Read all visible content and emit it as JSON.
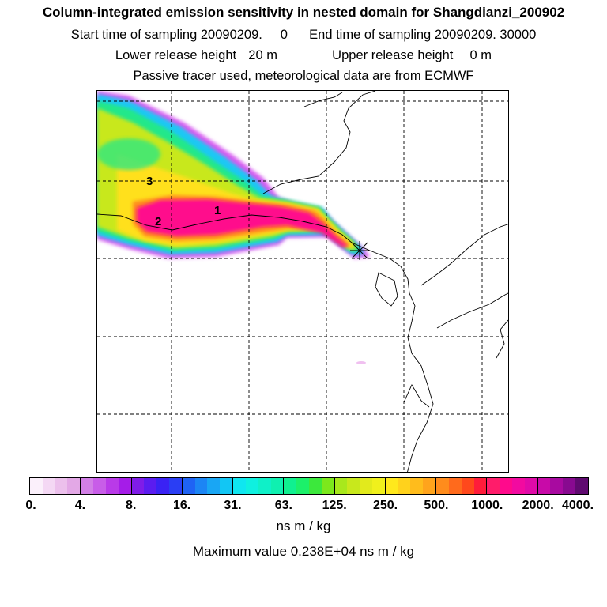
{
  "title": "Column-integrated emission sensitivity in nested domain for Shangdianzi_200902",
  "sampling": {
    "start_label": "Start time of sampling",
    "start_value": "20090209.     0",
    "end_label": "End time of sampling",
    "end_value": "20090209. 30000"
  },
  "release": {
    "lower_label": "Lower release height",
    "lower_value": "20 m",
    "upper_label": "Upper release height",
    "upper_value": "0 m"
  },
  "tracer_note": "Passive tracer used, meteorological data are from ECMWF",
  "map": {
    "contour_labels": [
      "1",
      "2",
      "3"
    ],
    "receptor_marker": "Shangdianzi receptor"
  },
  "colorbar": {
    "ticks": [
      "0.",
      "4.",
      "8.",
      "16.",
      "31.",
      "63.",
      "125.",
      "250.",
      "500.",
      "1000.",
      "2000.",
      "4000."
    ],
    "bins": [
      [
        "#fbf0fb",
        "#f4d8f4",
        "#ecc0ec",
        "#e3a8e6"
      ],
      [
        "#d27fe6",
        "#c85de8",
        "#b93ae8",
        "#a51ce8"
      ],
      [
        "#7f1ce8",
        "#5b1cf0",
        "#3a22f4",
        "#2a3ef4"
      ],
      [
        "#1f63f4",
        "#1c85f4",
        "#19a6f4",
        "#12c6f4"
      ],
      [
        "#0fe6f0",
        "#0ff0e0",
        "#0ff0c8",
        "#0ff0b0"
      ],
      [
        "#10f090",
        "#1cf06a",
        "#3ce83c",
        "#7ce81c"
      ],
      [
        "#a8e81c",
        "#c8e81c",
        "#e2ea1c",
        "#f0f01c"
      ],
      [
        "#ffe81c",
        "#ffd21c",
        "#ffbc1c",
        "#ffa41c"
      ],
      [
        "#ff8c1c",
        "#ff6a1c",
        "#ff481c",
        "#ff1c3a"
      ],
      [
        "#ff1c6a",
        "#ff0a8c",
        "#f20aa0",
        "#e00aa8"
      ],
      [
        "#c80aa8",
        "#a80aa0",
        "#880a90",
        "#600a70"
      ]
    ]
  },
  "units": "ns m / kg",
  "max_value_label": "Maximum value",
  "max_value": "0.238E+04 ns m / kg"
}
